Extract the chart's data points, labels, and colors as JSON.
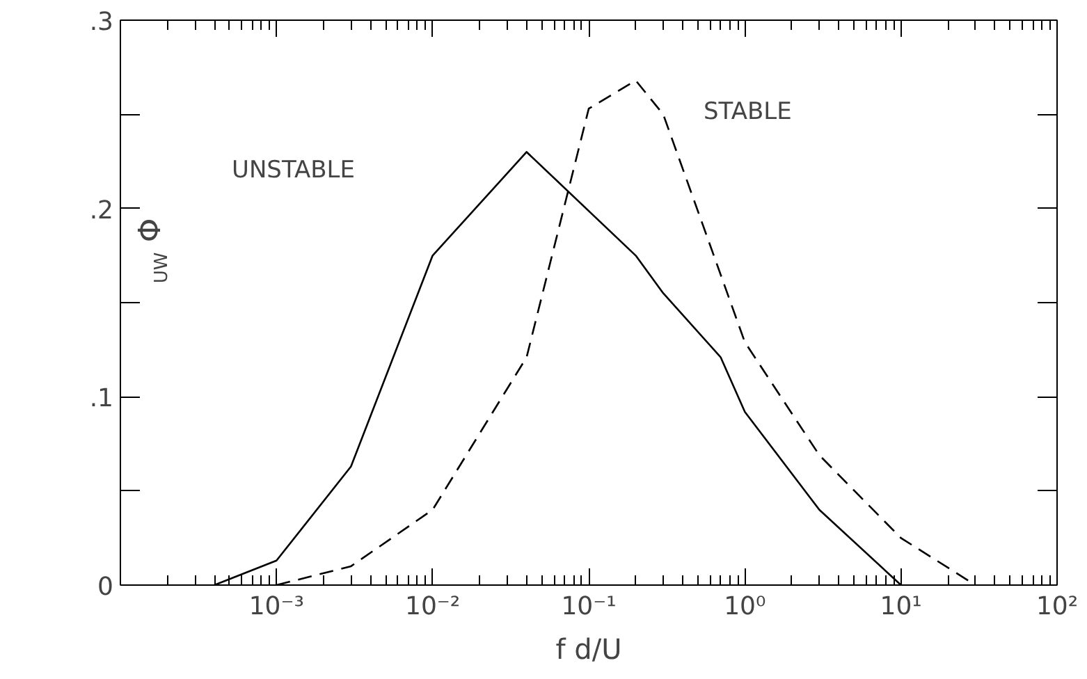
{
  "chart_data": {
    "type": "line",
    "xlabel": "f d/U",
    "ylabel": "Φ$_{UW}$",
    "log": "x",
    "xlim": [
      0.0001,
      100
    ],
    "ylim": [
      0,
      0.3
    ],
    "xticks": [
      {
        "value": 0.001,
        "label": "10⁻³"
      },
      {
        "value": 0.01,
        "label": "10⁻²"
      },
      {
        "value": 0.1,
        "label": "10⁻¹"
      },
      {
        "value": 1,
        "label": "10⁰"
      },
      {
        "value": 10,
        "label": "10¹"
      },
      {
        "value": 100,
        "label": "10²"
      }
    ],
    "yticks": [
      {
        "value": 0,
        "label": "0"
      },
      {
        "value": 0.05,
        "label": null
      },
      {
        "value": 0.1,
        "label": ".1"
      },
      {
        "value": 0.15,
        "label": null
      },
      {
        "value": 0.2,
        "label": ".2"
      },
      {
        "value": 0.25,
        "label": null
      },
      {
        "value": 0.3,
        "label": ".3"
      }
    ],
    "grid": false,
    "marker": "none",
    "series": [
      {
        "color": "#000000",
        "line_style": "solid",
        "x": [
          0.0004,
          0.001,
          0.003,
          0.01,
          0.04,
          0.2,
          0.3,
          0.7,
          1,
          3,
          10
        ],
        "values": [
          0,
          0.013,
          0.063,
          0.175,
          0.23,
          0.175,
          0.155,
          0.121,
          0.092,
          0.04,
          0
        ]
      },
      {
        "color": "#000000",
        "line_style": "dashed",
        "x": [
          0.001,
          0.003,
          0.01,
          0.04,
          0.1,
          0.2,
          0.3,
          1,
          3,
          10,
          30
        ],
        "values": [
          0,
          0.01,
          0.04,
          0.121,
          0.253,
          0.268,
          0.25,
          0.129,
          0.069,
          0.025,
          0
        ]
      }
    ],
    "annotations": [
      "UNSTABLE",
      "STABLE"
    ]
  }
}
